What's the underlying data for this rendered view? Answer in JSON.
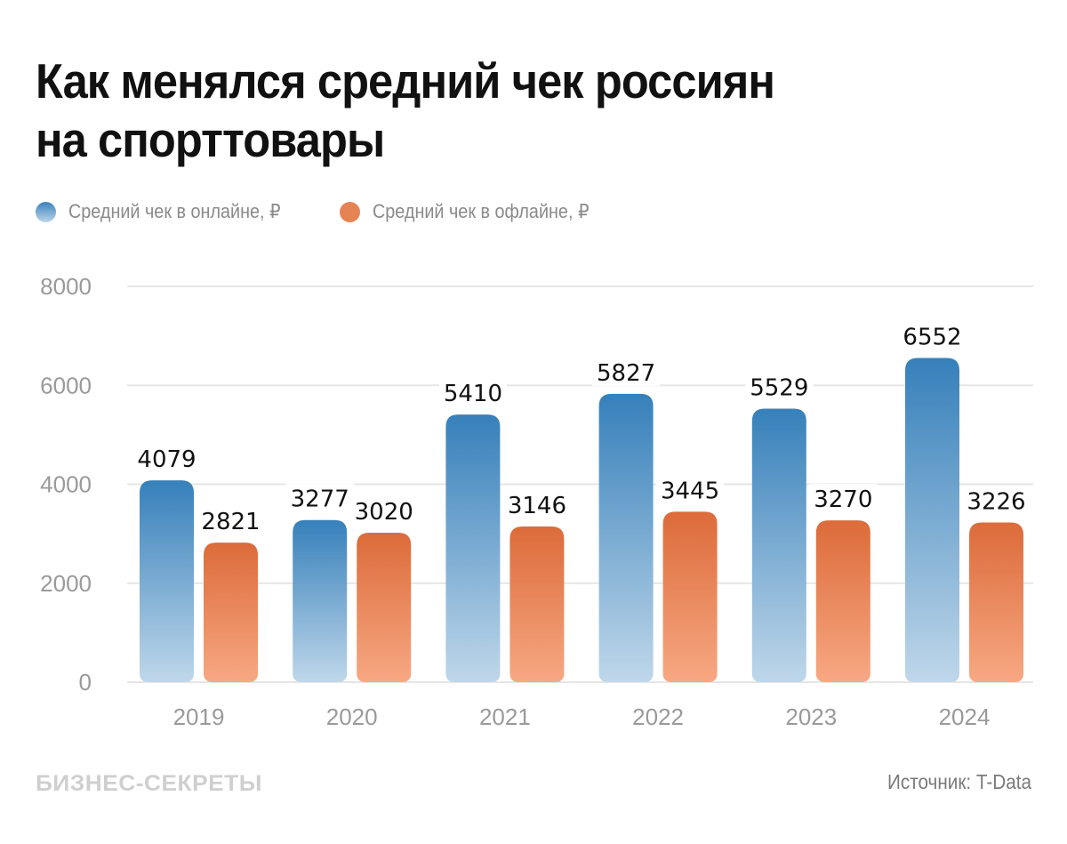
{
  "header": {
    "title_line1": "Как менялся средний чек россиян",
    "title_line2": "на спорттовары"
  },
  "legend": [
    {
      "label": "Средний чек в онлайне, ₽",
      "icon": "circle-gradient-blue"
    },
    {
      "label": "Средний чек в офлайне, ₽",
      "icon": "circle-orange"
    }
  ],
  "footer": {
    "brand": "БИЗНЕС-СЕКРЕТЫ",
    "source": "Источник: T-Data"
  },
  "colors": {
    "online_top": "#3680ba",
    "online_bottom": "#bfd7ea",
    "offline_top": "#dc6b3a",
    "offline_bottom": "#f7a883",
    "grid": "#e6e6e6",
    "axis_text": "#9a9a9a",
    "label_text": "#111111"
  },
  "chart_data": {
    "type": "bar",
    "title": "Как менялся средний чек россиян на спорттовары",
    "xlabel": "",
    "ylabel": "",
    "categories": [
      "2019",
      "2020",
      "2021",
      "2022",
      "2023",
      "2024"
    ],
    "series": [
      {
        "name": "Средний чек в онлайне, ₽",
        "values": [
          4079,
          3277,
          5410,
          5827,
          5529,
          6552
        ]
      },
      {
        "name": "Средний чек в офлайне, ₽",
        "values": [
          2821,
          3020,
          3146,
          3445,
          3270,
          3226
        ]
      }
    ],
    "ylim": [
      0,
      8000
    ],
    "yticks": [
      0,
      2000,
      4000,
      6000,
      8000
    ],
    "grid": true,
    "legend_position": "top-left",
    "data_labels": true,
    "source": "T-Data"
  }
}
